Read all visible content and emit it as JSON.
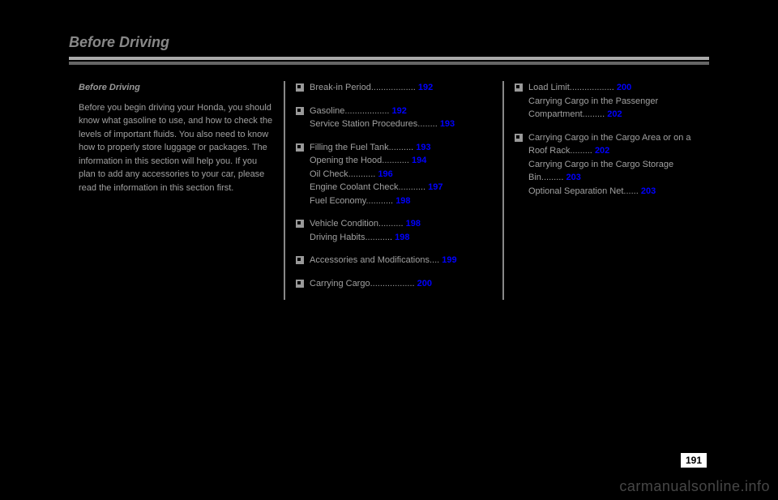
{
  "title": "Before Driving",
  "col1": {
    "subhead": "Before Driving",
    "para1": "Before you begin driving your Honda, you should know what gasoline to use, and how to check the levels of important fluids. You also need to know how to properly store luggage or packages. The information in this section will help you. If you plan to add any accessories to your car, please read the information in this section first."
  },
  "col2": {
    "items": [
      {
        "text_a": "Break-in Period",
        "dots": "..................",
        "page": "192"
      },
      {
        "text_a": "Gasoline",
        "dots": "..................",
        "page_a": "192",
        "text_b": "Service Station Procedures",
        "dots_b": "........",
        "page_b": "193"
      },
      {
        "text_a": "Filling the Fuel Tank",
        "dots": "..........",
        "page_a": "193",
        "text_b": "Opening the Hood",
        "dots_b": "...........",
        "page_b": "194",
        "text_c": "Oil Check",
        "dots_c": "...........",
        "page_c": "196",
        "text_d": "Engine Coolant Check",
        "dots_d": "...........",
        "page_d": "197",
        "text_e": "Fuel Economy",
        "dots_e": "...........",
        "page_e": "198"
      },
      {
        "text_a": "Vehicle Condition",
        "dots": "..........",
        "page_a": "198",
        "text_b": "Driving Habits",
        "dots_b": "...........",
        "page_b": "198"
      },
      {
        "text_a": "Accessories and Modifications",
        "dots": "....",
        "page": "199"
      },
      {
        "text_a": "Carrying Cargo",
        "dots": "..................",
        "page": "200"
      }
    ]
  },
  "col3": {
    "items": [
      {
        "text_a": "Load Limit",
        "dots": "..................",
        "page_a": "200",
        "text_b": "Carrying Cargo in the Passenger Compartment",
        "dots_b": ".........",
        "page_b": "202"
      },
      {
        "text_a": "Carrying Cargo in the Cargo Area or on a Roof Rack",
        "dots": ".........",
        "page_a": "202",
        "text_b": "Carrying Cargo in the Cargo Storage Bin",
        "dots_b": ".........",
        "page_b": "203",
        "text_c": "Optional Separation Net",
        "dots_c": "......",
        "page_c": "203"
      }
    ]
  },
  "page_number": "191",
  "watermark": "carmanualsonline.info"
}
